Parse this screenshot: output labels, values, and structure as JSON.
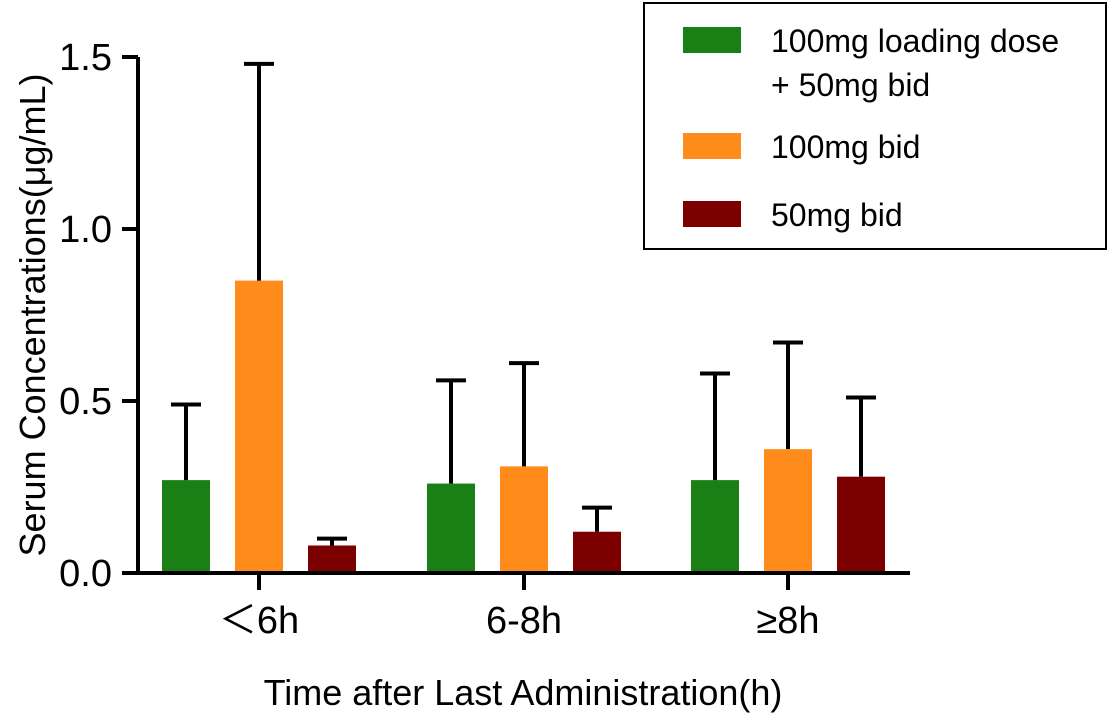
{
  "chart_data": {
    "type": "bar",
    "title": "",
    "xlabel": "Time after Last Administration(h)",
    "ylabel": "Serum Concentrations(μg/mL)",
    "ylim": [
      0,
      1.5
    ],
    "yticks": [
      "0.0",
      "0.5",
      "1.0",
      "1.5"
    ],
    "ytick_values": [
      0,
      0.5,
      1.0,
      1.5
    ],
    "categories": [
      "＜6h",
      "6-8h",
      "≥8h"
    ],
    "error_bars": "upper (mean + SD)",
    "legend_position": "top-right",
    "series": [
      {
        "name": "100mg loading dose + 50mg bid",
        "legend_lines": [
          "100mg loading dose",
          "+ 50mg bid"
        ],
        "color": "#1a7f15",
        "values": [
          0.27,
          0.26,
          0.27
        ],
        "error_upper": [
          0.49,
          0.56,
          0.58
        ]
      },
      {
        "name": "100mg bid",
        "legend_lines": [
          "100mg bid"
        ],
        "color": "#ff8c1a",
        "values": [
          0.85,
          0.31,
          0.36
        ],
        "error_upper": [
          1.48,
          0.61,
          0.67
        ]
      },
      {
        "name": "50mg bid",
        "legend_lines": [
          "50mg bid"
        ],
        "color": "#7d0000",
        "values": [
          0.08,
          0.12,
          0.28
        ],
        "error_upper": [
          0.1,
          0.19,
          0.51
        ]
      }
    ]
  }
}
